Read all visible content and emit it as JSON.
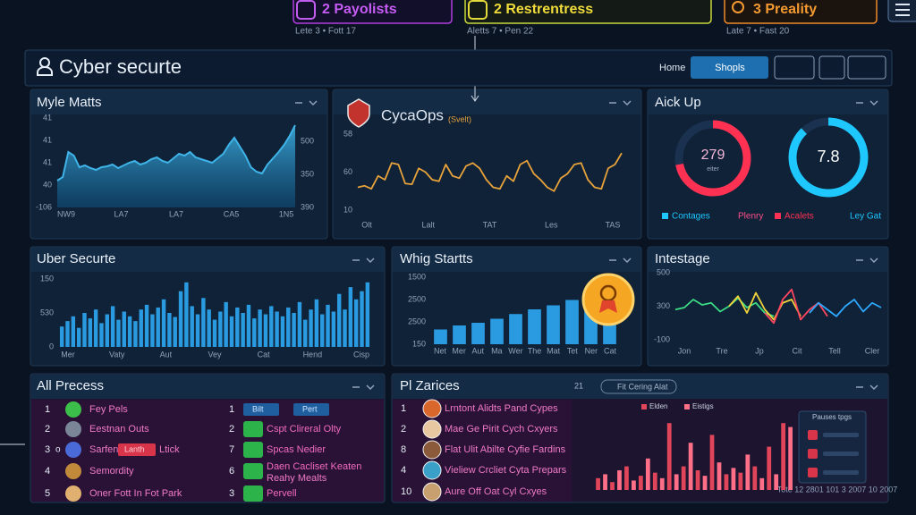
{
  "tabs": [
    {
      "label": "2 Payolists",
      "meta": "Lete 3 • Fott 17"
    },
    {
      "label": "2 Restrentress",
      "meta": "Aletts 7 • Pen 22"
    },
    {
      "label": "3 Preality",
      "meta": "Late 7 • Fast 20"
    }
  ],
  "header": {
    "title": "Cyber securte",
    "nav": [
      "Home",
      "Shopls"
    ]
  },
  "chart_data": [
    {
      "type": "area",
      "title": "Myle Matts",
      "color": "#3fb4e8",
      "ylim": [
        0,
        100
      ],
      "y_labels": [
        "41",
        "41",
        "41",
        "40",
        "-106"
      ],
      "y2_labels": [
        "500",
        "350",
        "390"
      ],
      "x_labels": [
        "NW9",
        "LA7",
        "LA7",
        "CA5",
        "1N5"
      ],
      "values": [
        30,
        34,
        62,
        58,
        45,
        47,
        44,
        42,
        45,
        46,
        48,
        44,
        47,
        50,
        52,
        48,
        50,
        54,
        56,
        52,
        50,
        55,
        60,
        58,
        62,
        56,
        54,
        52,
        50,
        55,
        60,
        70,
        78,
        68,
        58,
        45,
        40,
        38,
        48,
        55,
        62,
        70,
        80,
        92
      ]
    },
    {
      "type": "line",
      "title": "CycaOps",
      "subtitle": "(Svelt)",
      "ylim": [
        0,
        100
      ],
      "y_labels": [
        "58",
        "60",
        "10"
      ],
      "x_labels": [
        "Olt",
        "Lalt",
        "TAT",
        "Les",
        "TAS"
      ],
      "series": [
        {
          "color": "#e8a23a",
          "values": [
            30,
            32,
            28,
            45,
            40,
            62,
            60,
            35,
            34,
            55,
            50,
            40,
            38,
            60,
            45,
            42,
            58,
            62,
            55,
            40,
            30,
            28,
            45,
            38,
            60,
            65,
            48,
            40,
            30,
            25,
            42,
            48,
            60,
            62,
            40,
            30,
            28,
            55,
            60,
            75
          ]
        }
      ]
    },
    {
      "type": "gauge",
      "title": "Aick Up",
      "gauges": [
        {
          "label": "279",
          "sublabel": "eiter",
          "percent": 72,
          "color": "#ff3153"
        },
        {
          "label": "7.8",
          "percent": 88,
          "color": "#1ec8ff"
        }
      ],
      "legend": [
        {
          "name": "Contages",
          "color": "#1ec8ff",
          "square": true
        },
        {
          "name": "Plenry",
          "color": "#ff4f8a",
          "square": false
        },
        {
          "name": "Acalets",
          "color": "#ff3153",
          "square": true
        },
        {
          "name": "Ley Gat",
          "color": "#1ec8ff",
          "square": false
        }
      ]
    },
    {
      "type": "bar",
      "title": "Uber Securte",
      "ylim": [
        0,
        100
      ],
      "y_labels": [
        "150",
        "530",
        "0"
      ],
      "x_labels": [
        "Mer",
        "Vaty",
        "Aut",
        "Vey",
        "Cat",
        "Hend",
        "Cisp"
      ],
      "series": [
        {
          "color": "#2a9be0",
          "values": [
            30,
            38,
            45,
            28,
            50,
            42,
            55,
            35,
            48,
            60,
            40,
            52,
            45,
            38,
            55,
            62,
            48,
            58,
            70,
            50,
            44,
            82,
            95,
            60,
            48,
            72,
            55,
            40,
            52,
            66,
            45,
            58,
            50,
            62,
            42,
            55,
            48,
            60,
            52,
            45,
            58,
            50,
            66,
            40,
            55,
            70,
            48,
            62,
            52,
            78,
            55,
            88,
            70,
            82,
            95
          ]
        }
      ]
    },
    {
      "type": "bar",
      "title": "Whig Startts",
      "ylim": [
        0,
        100
      ],
      "y_labels": [
        "1500",
        "2500",
        "2500",
        "150"
      ],
      "x_labels": [
        "Net",
        "Mer",
        "Aut",
        "Ma",
        "Wer",
        "The",
        "Mat",
        "Tet",
        "Ner",
        "Cat"
      ],
      "series": [
        {
          "color": "#2a9be0",
          "values": [
            22,
            28,
            32,
            38,
            45,
            52,
            58,
            66,
            72,
            80
          ]
        }
      ]
    },
    {
      "type": "line",
      "title": "Intestage",
      "ylim": [
        0,
        100
      ],
      "xlim": [
        0,
        23
      ],
      "y_labels": [
        "500",
        "300",
        "-100"
      ],
      "x_labels": [
        "Jon",
        "Tre",
        "Jp",
        "Cit",
        "Tell",
        "Cler"
      ],
      "x": [
        0,
        1,
        2,
        3,
        4,
        5,
        6,
        7,
        8,
        9,
        10,
        11,
        12,
        13,
        14,
        15,
        16,
        17,
        18,
        19,
        20,
        21,
        22,
        23
      ],
      "series": [
        {
          "color": "#3ddc84",
          "values": [
            45,
            48,
            60,
            52,
            55,
            42,
            50,
            62,
            48,
            55,
            40,
            35,
            null,
            null,
            null,
            null,
            null,
            null,
            null,
            null,
            null,
            null,
            null,
            null
          ]
        },
        {
          "color": "#f2d43a",
          "values": [
            null,
            null,
            null,
            null,
            null,
            null,
            50,
            65,
            40,
            70,
            45,
            30,
            55,
            60,
            35,
            null,
            null,
            null,
            null,
            null,
            null,
            null,
            null,
            null
          ]
        },
        {
          "color": "#ff4560",
          "values": [
            null,
            null,
            null,
            null,
            null,
            null,
            null,
            null,
            null,
            null,
            40,
            25,
            60,
            75,
            30,
            45,
            55,
            35,
            null,
            null,
            null,
            null,
            null,
            null
          ]
        },
        {
          "color": "#2fa8ff",
          "values": [
            null,
            null,
            null,
            null,
            null,
            null,
            null,
            null,
            null,
            null,
            null,
            null,
            null,
            null,
            null,
            40,
            55,
            45,
            35,
            50,
            60,
            42,
            55,
            48
          ]
        }
      ]
    },
    {
      "type": "bar",
      "ylim": [
        0,
        100
      ],
      "x_labels": [
        "Tote 12 2801 101 3 2007 10 2007"
      ],
      "series": [
        {
          "name": "Elden",
          "color": "#e0455a",
          "values": [
            15,
            10,
            30,
            18,
            22,
            85,
            30,
            25,
            70,
            20,
            22,
            30,
            55,
            85
          ]
        },
        {
          "name": "Eistigs",
          "color": "#ff7088",
          "values": [
            20,
            25,
            12,
            40,
            15,
            20,
            60,
            18,
            35,
            28,
            45,
            15,
            20,
            80
          ]
        }
      ]
    }
  ],
  "lists": [
    {
      "title": "All Precess",
      "columns": [
        [
          {
            "num": "1",
            "text": "Fey Pels"
          },
          {
            "num": "2",
            "text": "Eestnan Outs"
          },
          {
            "num": "3",
            "mark": "o",
            "text": "Sarfent",
            "badge": "Lanth",
            "after": "Ltick"
          },
          {
            "num": "4",
            "text": "Semordity"
          },
          {
            "num": "5",
            "text": "Oner Fott In Fot Park"
          }
        ],
        [
          {
            "num": "1",
            "chips": [
              "Bilt",
              "Pert"
            ]
          },
          {
            "num": "2",
            "text": "Cspt Clireral Olty"
          },
          {
            "num": "7",
            "text": "Spcas Nedier"
          },
          {
            "num": "6",
            "text": "Daen Cacliset Keaten",
            "text2": "Reahy Mealts"
          },
          {
            "num": "3",
            "text": "Pervell"
          }
        ]
      ]
    },
    {
      "title": "Pl Zarices",
      "filter": "21",
      "search": "Fit Cering Alat",
      "side_title": "Pauses tpgs",
      "rows": [
        {
          "num": "1",
          "text": "Lrntont Alidts Pand Cypes"
        },
        {
          "num": "2",
          "text": "Mae Ge Pirit Cych Cxyers"
        },
        {
          "num": "8",
          "text": "Flat Ulit Abilte Cyfie Fardins"
        },
        {
          "num": "4",
          "text": "Vieliew Crcliet Cyta Prepars"
        },
        {
          "num": "10",
          "text": "Aure Off Oat Cyl Cxyes"
        }
      ]
    }
  ]
}
